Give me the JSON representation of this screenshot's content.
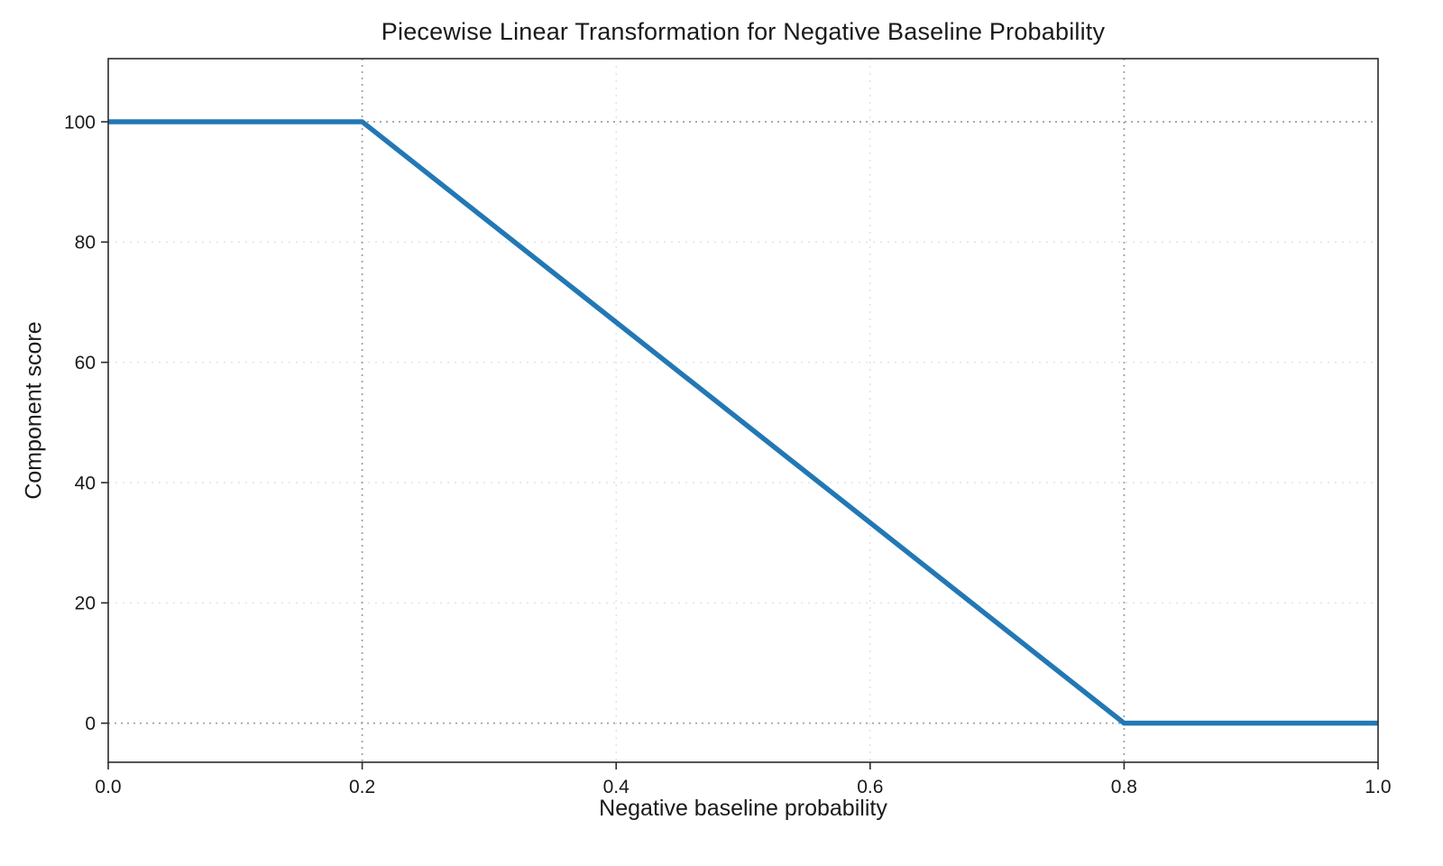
{
  "chart_data": {
    "type": "line",
    "title": "Piecewise Linear Transformation for Negative Baseline Probability",
    "xlabel": "Negative baseline probability",
    "ylabel": "Component score",
    "x": [
      0.0,
      0.2,
      0.8,
      1.0
    ],
    "y": [
      100,
      100,
      0,
      0
    ],
    "xlim": [
      0.0,
      1.0
    ],
    "ylim": [
      -6.5,
      110.5
    ],
    "xticks": [
      0.0,
      0.2,
      0.4,
      0.6,
      0.8,
      1.0
    ],
    "xtick_labels": [
      "0.0",
      "0.2",
      "0.4",
      "0.6",
      "0.8",
      "1.0"
    ],
    "yticks": [
      0,
      20,
      40,
      60,
      80,
      100
    ],
    "ytick_labels": [
      "0",
      "20",
      "40",
      "60",
      "80",
      "100"
    ],
    "reference_lines": {
      "x": [
        0.2,
        0.8
      ],
      "y": [
        0,
        100
      ]
    },
    "grid": true,
    "legend": "none",
    "line_color": "#2278b5",
    "line_width": 5.5,
    "grid_color": "#dcdcdc",
    "ref_line_color": "#9e9e9e",
    "spine_color": "#2b2b2b",
    "tick_text_color": "#1a1a1a"
  }
}
